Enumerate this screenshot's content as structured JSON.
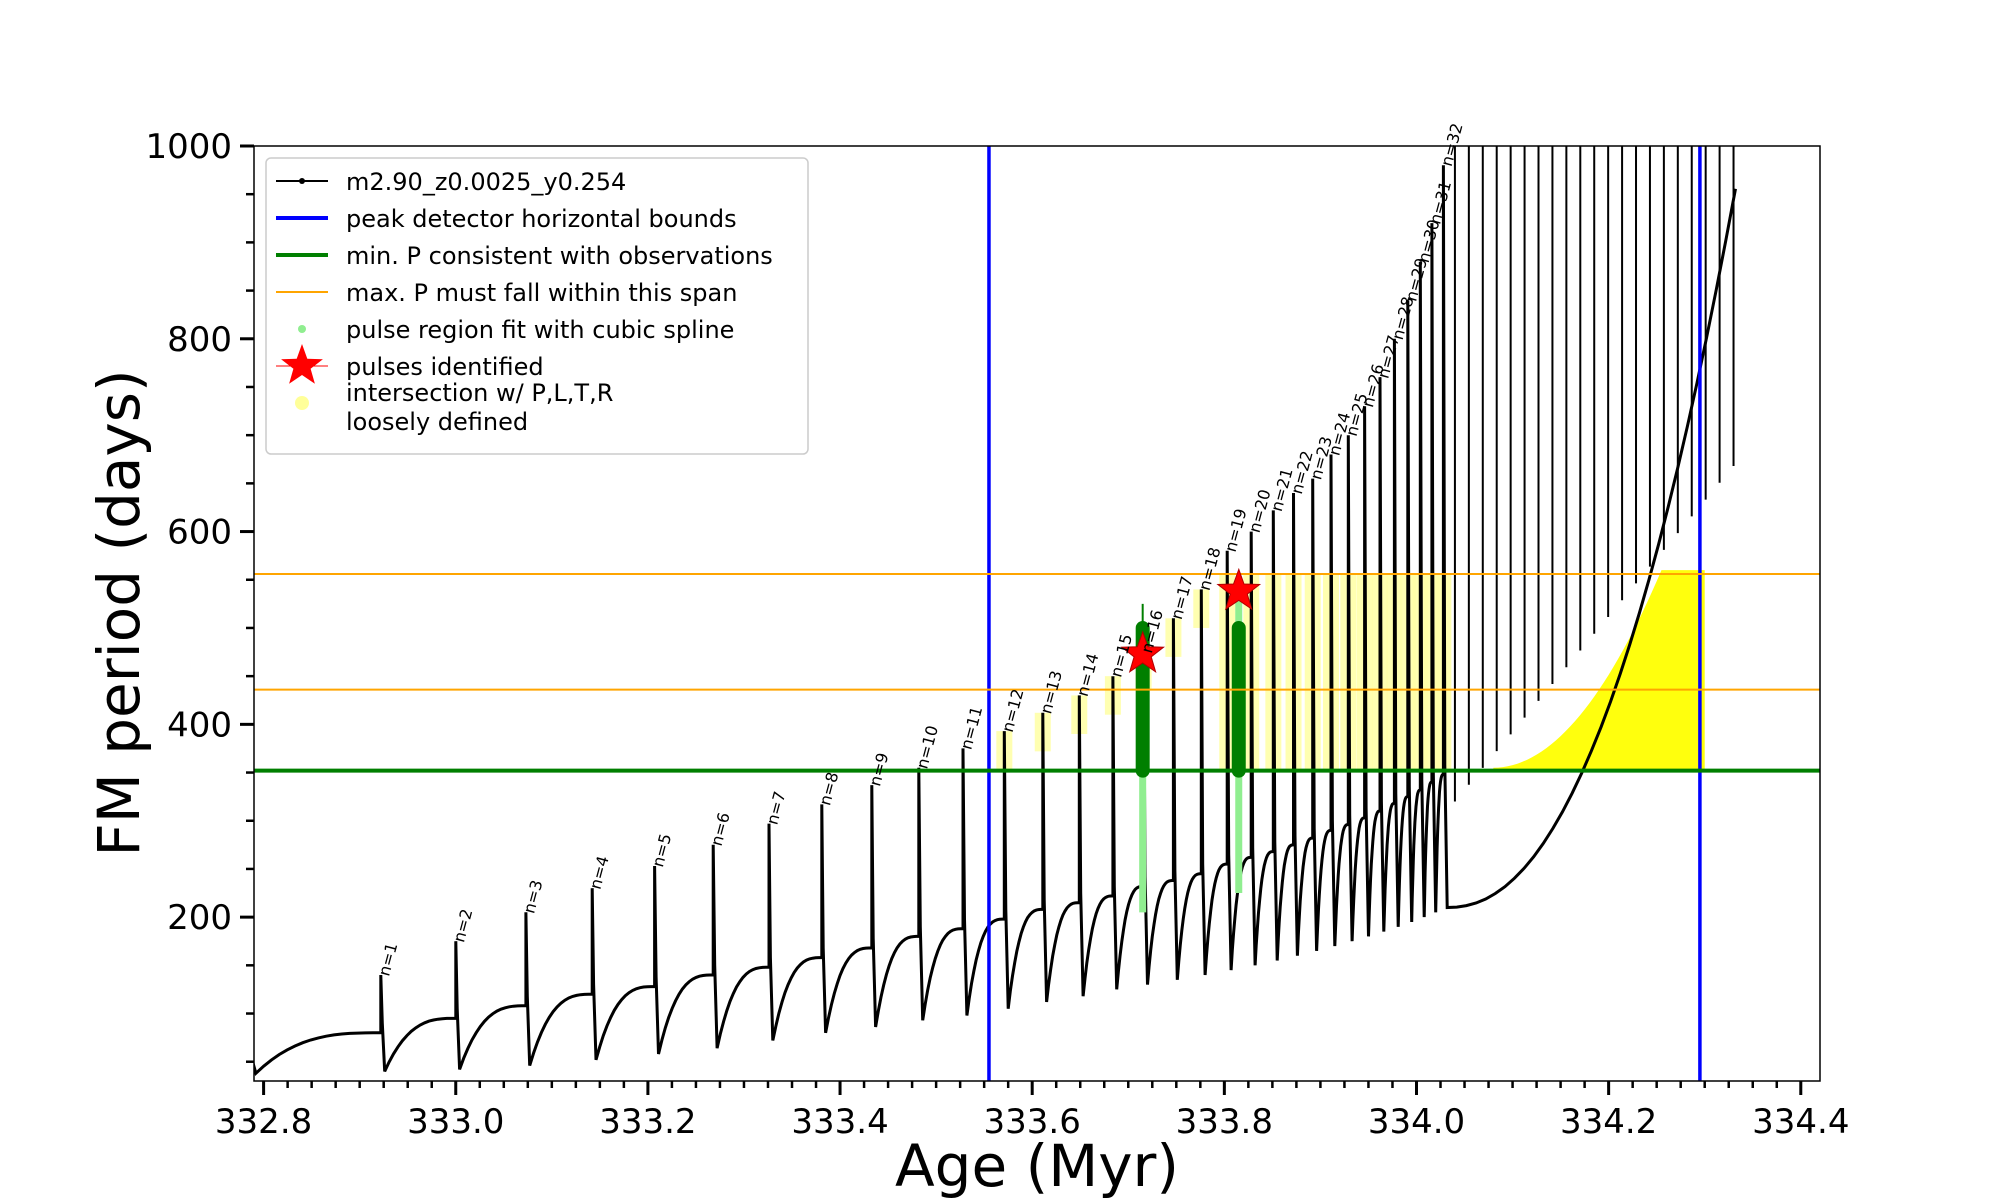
{
  "chart_data": {
    "type": "line",
    "xlabel": "Age (Myr)",
    "ylabel": "FM period (days)",
    "xlim": [
      332.79,
      334.42
    ],
    "ylim": [
      30,
      1000
    ],
    "xticks": [
      332.8,
      333.0,
      333.2,
      333.4,
      333.6,
      333.8,
      334.0,
      334.2,
      334.4
    ],
    "xtick_labels": [
      "332.8",
      "333.0",
      "333.2",
      "333.4",
      "333.6",
      "333.8",
      "334.0",
      "334.2",
      "334.4"
    ],
    "yticks": [
      200,
      400,
      600,
      800,
      1000
    ],
    "ytick_labels": [
      "200",
      "400",
      "600",
      "800",
      "1000"
    ],
    "legend_position": "upper-left",
    "legend": [
      {
        "label": "m2.90_z0.0025_y0.254",
        "type": "line-marker",
        "color": "#000000"
      },
      {
        "label": "peak detector horizontal bounds",
        "type": "line",
        "color": "#0000ff"
      },
      {
        "label": "min. P consistent with observations",
        "type": "line",
        "color": "#007f00"
      },
      {
        "label": "max. P must fall within this span",
        "type": "line",
        "color": "#ffa500"
      },
      {
        "label": "pulse region fit with cubic spline",
        "type": "dot",
        "color": "#90ee90"
      },
      {
        "label": "pulses identified",
        "type": "star",
        "color": "#ff0000"
      },
      {
        "label": "intersection w/ P,L,T,R",
        "label2": "loosely defined",
        "type": "dot",
        "color": "#ffff99"
      }
    ],
    "vlines": {
      "color": "#0000ff",
      "x": [
        333.555,
        334.295
      ]
    },
    "hline_min": {
      "color": "#007f00",
      "y": 352
    },
    "hlines_span": {
      "color": "#ffa500",
      "y": [
        436,
        556
      ]
    },
    "pulses": {
      "n": [
        1,
        2,
        3,
        4,
        5,
        6,
        7,
        8,
        9,
        10,
        11,
        12,
        13,
        14,
        15,
        16,
        17,
        18,
        19,
        20,
        21,
        22,
        23,
        24,
        25,
        26,
        27,
        28,
        29,
        30,
        31,
        32
      ],
      "labels": [
        "n=1",
        "n=2",
        "n=3",
        "n=4",
        "n=5",
        "n=6",
        "n=7",
        "n=8",
        "n=9",
        "n=10",
        "n=11",
        "n=12",
        "n=13",
        "n=14",
        "n=15",
        "n=16",
        "n=17",
        "n=18",
        "n=19",
        "n=20",
        "n=21",
        "n=22",
        "n=23",
        "n=24",
        "n=25",
        "n=26",
        "n=27",
        "n=28",
        "n=29",
        "n=30",
        "n=31",
        "n=32"
      ],
      "age": [
        332.922,
        333.0,
        333.073,
        333.142,
        333.207,
        333.268,
        333.326,
        333.381,
        333.433,
        333.482,
        333.528,
        333.571,
        333.611,
        333.649,
        333.684,
        333.716,
        333.747,
        333.776,
        333.803,
        333.828,
        333.851,
        333.872,
        333.892,
        333.911,
        333.929,
        333.946,
        333.962,
        333.977,
        333.991,
        334.004,
        334.016,
        334.028
      ],
      "peak": [
        140,
        175,
        205,
        230,
        253,
        275,
        297,
        317,
        337,
        355,
        375,
        393,
        412,
        430,
        450,
        475,
        510,
        540,
        580,
        600,
        622,
        640,
        655,
        680,
        700,
        730,
        760,
        800,
        840,
        880,
        920,
        980
      ],
      "trough": [
        40,
        42,
        46,
        52,
        58,
        64,
        72,
        80,
        86,
        93,
        98,
        105,
        112,
        118,
        125,
        130,
        135,
        140,
        145,
        150,
        155,
        160,
        165,
        170,
        175,
        180,
        185,
        190,
        195,
        200,
        205,
        210
      ],
      "base": [
        80,
        95,
        108,
        120,
        128,
        140,
        148,
        158,
        168,
        180,
        188,
        198,
        208,
        215,
        222,
        232,
        238,
        245,
        255,
        262,
        268,
        275,
        282,
        290,
        296,
        303,
        310,
        318,
        325,
        332,
        340,
        348
      ]
    },
    "track_start": {
      "age": 332.788,
      "period": 52
    },
    "pulses_identified": [
      {
        "age": 333.715,
        "period": 473
      },
      {
        "age": 333.815,
        "period": 538
      }
    ],
    "cubic_spline_regions": [
      {
        "age": 333.715,
        "period_range": [
          205,
          470
        ]
      },
      {
        "age": 333.815,
        "period_range": [
          225,
          540
        ]
      }
    ],
    "green_pulse_bands": [
      {
        "age": 333.715,
        "period_range": [
          352,
          500
        ],
        "thin_top": 525
      },
      {
        "age": 333.815,
        "period_range": [
          352,
          500
        ]
      }
    ]
  }
}
